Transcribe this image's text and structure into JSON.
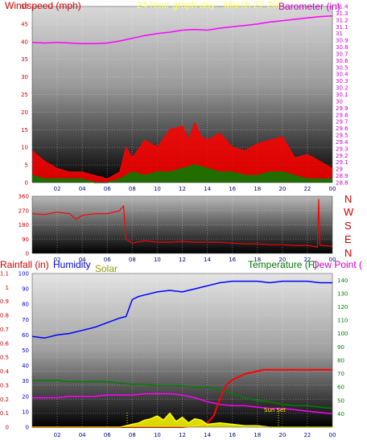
{
  "header": {
    "windspeed_label": "Windspeed (mph)",
    "date_label": "24 hour graph day - March 27 202",
    "barometer_label": "Barometer (in)"
  },
  "wind_dir": {
    "compass": [
      "N",
      "W",
      "S",
      "E",
      "N"
    ]
  },
  "bottom_labels": {
    "rainfall": "Rainfall (in)",
    "humidity": "Humidity",
    "solar": "Solar",
    "temperature": "Temperature (F)",
    "dew_point": "Dew Point ("
  },
  "annotations": {
    "sunset": "Sun Set"
  },
  "colors": {
    "wind": "#ff0000",
    "gust": "#ff0000",
    "wind_avg": "#008000",
    "barometer": "#ff00ff",
    "direction": "#ff0000",
    "rain": "#ff0000",
    "humidity": "#0000ff",
    "solar": "#ffff00",
    "temperature": "#008000",
    "dew_point": "#ff00ff",
    "left_axis": "#cc0000",
    "right_axis_top": "#cc00cc",
    "right_axis_bottom": "#008000"
  },
  "chart_data": [
    {
      "type": "line",
      "x_ticks": [
        "02",
        "04",
        "06",
        "08",
        "10",
        "12",
        "14",
        "16",
        "18",
        "20",
        "22",
        "00"
      ],
      "y_left_ticks": [
        "0",
        "5",
        "10",
        "15",
        "20",
        "25",
        "30",
        "35",
        "40",
        "45",
        "50"
      ],
      "y_right_ticks": [
        "28.8",
        "28.9",
        "29",
        "29.1",
        "29.2",
        "29.3",
        "29.4",
        "29.5",
        "29.6",
        "29.7",
        "29.8",
        "29.9",
        "30",
        "30.1",
        "30.2",
        "30.3",
        "30.4",
        "30.5",
        "30.6",
        "30.7",
        "30.8",
        "30.9",
        "31",
        "31.1",
        "31.2",
        "31.3",
        "31.4"
      ],
      "ylim_left": [
        0,
        50
      ],
      "ylim_right": [
        28.8,
        31.4
      ],
      "xlim": [
        0,
        24
      ],
      "series": [
        {
          "key": "barometer",
          "axis": "right",
          "x": [
            0,
            1,
            2,
            3,
            4,
            5,
            6,
            7,
            8,
            9,
            10,
            11,
            12,
            13,
            14,
            15,
            16,
            17,
            18,
            19,
            20,
            21,
            22,
            23,
            24
          ],
          "values": [
            30.87,
            30.86,
            30.87,
            30.86,
            30.85,
            30.85,
            30.86,
            30.89,
            30.93,
            30.97,
            31.0,
            31.02,
            31.05,
            31.06,
            31.05,
            31.08,
            31.1,
            31.12,
            31.14,
            31.17,
            31.19,
            31.21,
            31.23,
            31.25,
            31.26
          ]
        },
        {
          "key": "wind_peak",
          "axis": "left",
          "x": [
            0,
            1,
            2,
            3,
            4,
            5,
            6,
            7,
            7.5,
            8,
            9,
            10,
            11,
            12,
            12.5,
            13,
            13.5,
            14,
            15,
            16,
            17,
            18,
            19,
            20,
            21,
            22,
            23,
            24
          ],
          "values": [
            9,
            6,
            4,
            3,
            3,
            2,
            1,
            3,
            10,
            7,
            12,
            10,
            15,
            16,
            12,
            17,
            13,
            12,
            14,
            10,
            9,
            11,
            12,
            13,
            7,
            8,
            6,
            4
          ]
        },
        {
          "key": "wind_avg",
          "axis": "left",
          "x": [
            0,
            1,
            2,
            3,
            4,
            5,
            6,
            7,
            8,
            9,
            10,
            11,
            12,
            13,
            14,
            15,
            16,
            17,
            18,
            19,
            20,
            21,
            22,
            23,
            24
          ],
          "values": [
            2,
            1,
            1,
            1,
            1,
            0,
            0,
            1,
            3,
            2,
            3,
            3,
            4,
            5,
            4,
            3,
            3,
            2,
            2,
            3,
            3,
            2,
            1,
            1,
            1
          ]
        }
      ]
    },
    {
      "type": "line",
      "x_ticks": [
        "02",
        "04",
        "06",
        "08",
        "10",
        "12",
        "14",
        "16",
        "18",
        "20",
        "22",
        "00"
      ],
      "y_ticks": [
        "0",
        "90",
        "180",
        "270",
        "360"
      ],
      "ylim": [
        0,
        360
      ],
      "xlim": [
        0,
        24
      ],
      "series": [
        {
          "key": "direction",
          "x": [
            0,
            1,
            2,
            3,
            3.5,
            4,
            5,
            6,
            6.5,
            7,
            7.3,
            7.5,
            8,
            9,
            10,
            11,
            12,
            13,
            14,
            15,
            16,
            17,
            18,
            19,
            20,
            21,
            22,
            22.8,
            22.9,
            23,
            24
          ],
          "values": [
            250,
            245,
            260,
            250,
            215,
            240,
            250,
            250,
            260,
            270,
            300,
            90,
            65,
            80,
            70,
            70,
            75,
            70,
            70,
            70,
            65,
            60,
            60,
            55,
            55,
            50,
            50,
            40,
            340,
            50,
            45
          ]
        }
      ]
    },
    {
      "type": "line",
      "x_ticks": [
        "02",
        "04",
        "06",
        "08",
        "10",
        "12",
        "14",
        "16",
        "18",
        "20",
        "22",
        "00"
      ],
      "y_left_rain_ticks": [
        "0",
        "0.1",
        "0.2",
        "0.3",
        "0.4",
        "0.5",
        "0.6",
        "0.7",
        "0.8",
        "0.9",
        "1",
        "1.1"
      ],
      "y_left_humidity_ticks": [
        "0",
        "10",
        "20",
        "30",
        "40",
        "50",
        "60",
        "70",
        "80",
        "90",
        "100"
      ],
      "y_right_ticks": [
        "40",
        "50",
        "60",
        "70",
        "80",
        "90",
        "100",
        "110",
        "120",
        "130",
        "140"
      ],
      "ylim_rain": [
        0,
        1.1
      ],
      "ylim_humidity": [
        0,
        100
      ],
      "ylim_temp": [
        30,
        145
      ],
      "xlim": [
        0,
        24
      ],
      "series": [
        {
          "key": "humidity",
          "axis": "humidity",
          "x": [
            0,
            1,
            2,
            3,
            4,
            5,
            6,
            7,
            7.5,
            8,
            8.5,
            9,
            10,
            11,
            12,
            13,
            14,
            15,
            16,
            17,
            18,
            19,
            20,
            21,
            22,
            23,
            24
          ],
          "values": [
            59,
            58,
            60,
            61,
            63,
            65,
            68,
            71,
            72,
            83,
            85,
            86,
            88,
            89,
            88,
            90,
            92,
            94,
            95,
            95,
            95,
            94,
            95,
            95,
            95,
            94,
            94
          ]
        },
        {
          "key": "temperature",
          "axis": "temp",
          "x": [
            0,
            1,
            2,
            3,
            4,
            5,
            6,
            7,
            8,
            9,
            10,
            11,
            12,
            13,
            14,
            15,
            16,
            17,
            18,
            19,
            20,
            21,
            22,
            23,
            24
          ],
          "values": [
            65,
            65,
            65,
            64,
            64,
            64,
            64,
            63,
            62,
            62,
            61,
            61,
            61,
            60,
            60,
            58,
            55,
            52,
            50,
            49,
            47,
            46,
            46,
            45,
            44
          ]
        },
        {
          "key": "dew_point",
          "axis": "temp",
          "x": [
            0,
            1,
            2,
            3,
            4,
            5,
            6,
            7,
            8,
            9,
            10,
            11,
            12,
            13,
            14,
            15,
            16,
            17,
            18,
            19,
            20,
            21,
            22,
            23,
            24
          ],
          "values": [
            52,
            52,
            52,
            53,
            53,
            53,
            54,
            54,
            54,
            55,
            55,
            55,
            54,
            52,
            49,
            47,
            46,
            46,
            45,
            44,
            44,
            43,
            42,
            41,
            40
          ]
        },
        {
          "key": "rain",
          "axis": "rain",
          "x": [
            0,
            7,
            12,
            13,
            14,
            14.5,
            15,
            15.5,
            16,
            17,
            18,
            18.5,
            19,
            20,
            22,
            24
          ],
          "values": [
            0,
            0,
            0,
            0.01,
            0.03,
            0.08,
            0.2,
            0.3,
            0.34,
            0.38,
            0.4,
            0.41,
            0.41,
            0.41,
            0.41,
            0.41
          ]
        },
        {
          "key": "solar",
          "axis": "rain",
          "x": [
            0,
            7,
            7.5,
            8,
            8.5,
            9,
            9.5,
            10,
            10.5,
            11,
            11.5,
            12,
            12.5,
            13,
            13.5,
            14,
            15,
            16,
            17,
            18,
            19,
            19.5,
            24
          ],
          "values": [
            0,
            0,
            0.01,
            0.02,
            0.03,
            0.05,
            0.06,
            0.08,
            0.05,
            0.1,
            0.04,
            0.07,
            0.03,
            0.06,
            0.05,
            0.02,
            0.03,
            0.02,
            0.01,
            0.01,
            0.0,
            0,
            0
          ]
        }
      ]
    }
  ]
}
